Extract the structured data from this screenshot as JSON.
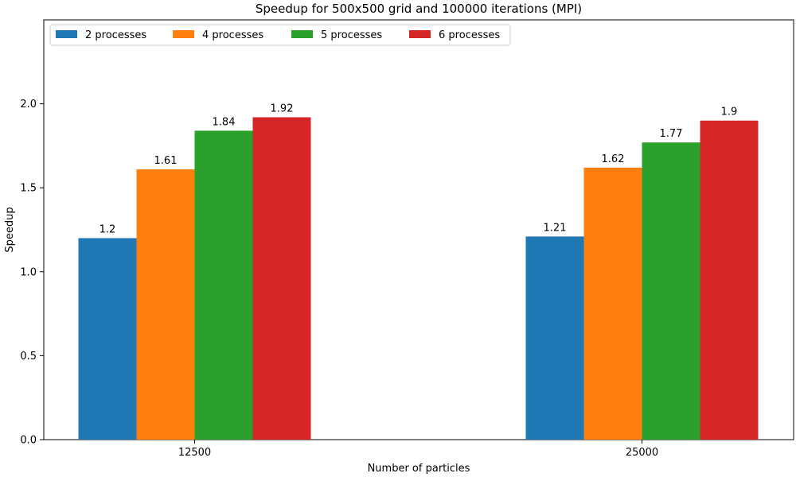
{
  "chart_data": {
    "type": "bar",
    "title": "Speedup for 500x500 grid and 100000 iterations (MPI)",
    "xlabel": "Number of particles",
    "ylabel": "Speedup",
    "categories": [
      "12500",
      "25000"
    ],
    "ylim": [
      0,
      2.5
    ],
    "yticks": [
      "0.0",
      "0.5",
      "1.0",
      "1.5",
      "2.0"
    ],
    "ytick_values": [
      0,
      0.5,
      1.0,
      1.5,
      2.0
    ],
    "grid": false,
    "legend_position": "top-left",
    "series": [
      {
        "name": "2 processes",
        "color": "#1f77b4",
        "values": [
          1.2,
          1.21
        ],
        "labels": [
          "1.2",
          "1.21"
        ]
      },
      {
        "name": "4 processes",
        "color": "#ff7f0e",
        "values": [
          1.61,
          1.62
        ],
        "labels": [
          "1.61",
          "1.62"
        ]
      },
      {
        "name": "5 processes",
        "color": "#2ca02c",
        "values": [
          1.84,
          1.77
        ],
        "labels": [
          "1.84",
          "1.77"
        ]
      },
      {
        "name": "6 processes",
        "color": "#d62728",
        "values": [
          1.92,
          1.9
        ],
        "labels": [
          "1.92",
          "1.9"
        ]
      }
    ]
  }
}
